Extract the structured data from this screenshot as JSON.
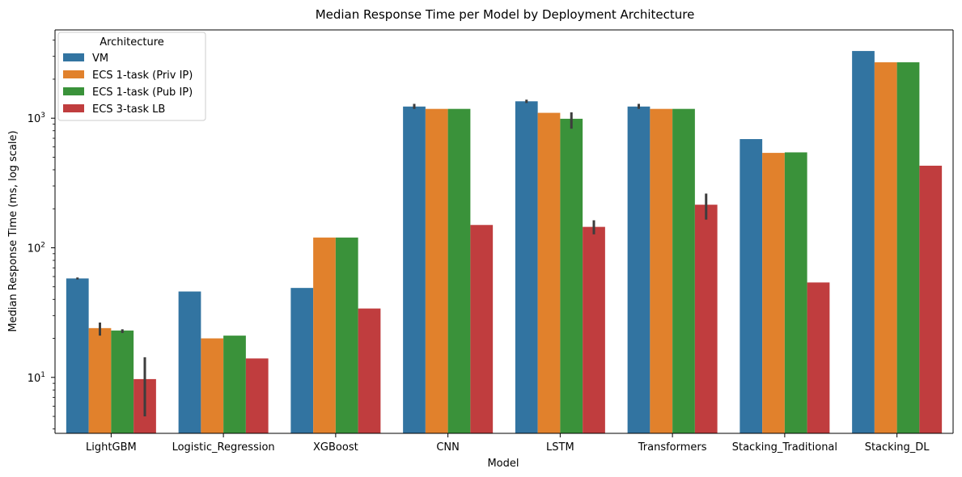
{
  "chart_data": {
    "type": "bar",
    "title": "Median Response Time per Model by Deployment Architecture",
    "xlabel": "Model",
    "ylabel": "Median Response Time (ms, log scale)",
    "yscale": "log",
    "ylim": [
      3.7,
      4800
    ],
    "yticks": [
      {
        "value": 10,
        "label": "10",
        "exp": "1"
      },
      {
        "value": 100,
        "label": "10",
        "exp": "2"
      },
      {
        "value": 1000,
        "label": "10",
        "exp": "3"
      }
    ],
    "grid": false,
    "categories": [
      "LightGBM",
      "Logistic_Regression",
      "XGBoost",
      "CNN",
      "LSTM",
      "Transformers",
      "Stacking_Traditional",
      "Stacking_DL"
    ],
    "legend": {
      "title": "Architecture",
      "placement": "top-left"
    },
    "series": [
      {
        "name": "VM",
        "color": "#3274a1",
        "values": [
          58,
          46,
          49,
          1230,
          1350,
          1230,
          690,
          3300
        ],
        "error": [
          [
            57,
            59
          ],
          null,
          null,
          [
            1180,
            1290
          ],
          [
            1310,
            1390
          ],
          [
            1180,
            1290
          ],
          null,
          null
        ]
      },
      {
        "name": "ECS 1-task (Priv IP)",
        "color": "#e1812c",
        "values": [
          24,
          20,
          120,
          1180,
          1100,
          1180,
          540,
          2700
        ],
        "error": [
          [
            21,
            26.5
          ],
          null,
          null,
          null,
          null,
          null,
          null,
          null
        ]
      },
      {
        "name": "ECS 1-task (Pub IP)",
        "color": "#3a923a",
        "values": [
          23,
          21,
          120,
          1180,
          990,
          1180,
          545,
          2700
        ],
        "error": [
          [
            22,
            23.5
          ],
          null,
          null,
          null,
          [
            830,
            1110
          ],
          null,
          null,
          null
        ]
      },
      {
        "name": "ECS 3-task LB",
        "color": "#c03d3e",
        "values": [
          9.7,
          14,
          34,
          150,
          145,
          215,
          54,
          430
        ],
        "error": [
          [
            5,
            14.3
          ],
          null,
          null,
          null,
          [
            127,
            163
          ],
          [
            165,
            262
          ],
          null,
          null
        ]
      }
    ]
  }
}
